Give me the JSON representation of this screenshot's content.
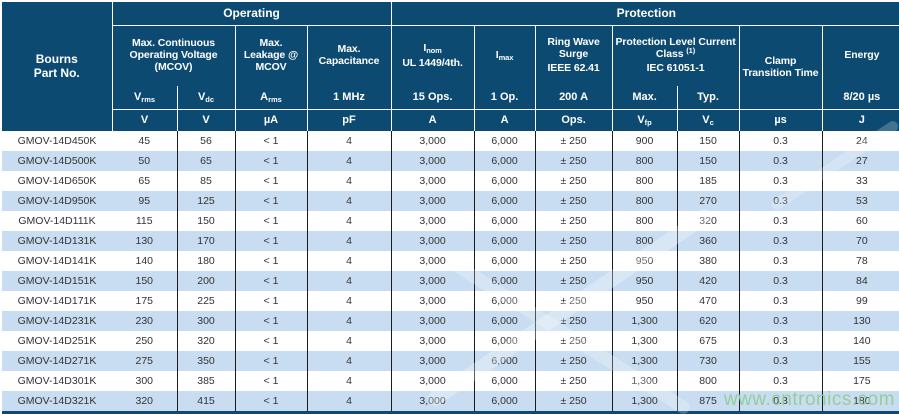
{
  "header": {
    "part": {
      "line1": "Bourns",
      "line2": "Part No."
    },
    "groups": {
      "operating": "Operating",
      "protection": "Protection"
    },
    "mcov": {
      "title": "Max. Continuous Operating Voltage (MCOV)",
      "vrms_base": "V",
      "vrms_sub": "rms",
      "vdc_base": "V",
      "vdc_sub": "dc",
      "unit_rms": "V",
      "unit_dc": "V"
    },
    "leakage": {
      "title": "Max. Leakage @ MCOV",
      "sub_base": "A",
      "sub_sub": "rms",
      "unit": "µA"
    },
    "capacitance": {
      "title": "Max. Capacitance",
      "cond": "1 MHz",
      "unit": "pF"
    },
    "inom": {
      "base": "I",
      "sub": "nom",
      "std": "UL 1449/4th.",
      "ops": "15 Ops.",
      "unit": "A"
    },
    "imax": {
      "base": "I",
      "sub": "max",
      "ops": "1 Op.",
      "unit": "A"
    },
    "ringwave": {
      "title": "Ring Wave Surge",
      "std": "IEEE 62.41",
      "ops": "200 A",
      "unit": "Ops."
    },
    "protlevel": {
      "title": "Protection Level Current Class",
      "note": "(1)",
      "std": "IEC 61051-1",
      "max_label": "Max.",
      "typ_label": "Typ.",
      "unit_max_base": "V",
      "unit_max_sub": "fp",
      "unit_typ_base": "V",
      "unit_typ_sub": "c"
    },
    "clamp": {
      "title": "Clamp Transition Time",
      "unit": "µs"
    },
    "energy": {
      "title": "Energy",
      "cond": "8/20 µs",
      "unit": "J"
    }
  },
  "rows": [
    [
      "GMOV-14D450K",
      "45",
      "56",
      "< 1",
      "4",
      "3,000",
      "6,000",
      "± 250",
      "900",
      "150",
      "0.3",
      "24"
    ],
    [
      "GMOV-14D500K",
      "50",
      "65",
      "< 1",
      "4",
      "3,000",
      "6,000",
      "± 250",
      "800",
      "150",
      "0.3",
      "27"
    ],
    [
      "GMOV-14D650K",
      "65",
      "85",
      "< 1",
      "4",
      "3,000",
      "6,000",
      "± 250",
      "800",
      "185",
      "0.3",
      "33"
    ],
    [
      "GMOV-14D950K",
      "95",
      "125",
      "< 1",
      "4",
      "3,000",
      "6,000",
      "± 250",
      "800",
      "270",
      "0.3",
      "53"
    ],
    [
      "GMOV-14D111K",
      "115",
      "150",
      "< 1",
      "4",
      "3,000",
      "6,000",
      "± 250",
      "800",
      "320",
      "0.3",
      "60"
    ],
    [
      "GMOV-14D131K",
      "130",
      "170",
      "< 1",
      "4",
      "3,000",
      "6,000",
      "± 250",
      "800",
      "360",
      "0.3",
      "70"
    ],
    [
      "GMOV-14D141K",
      "140",
      "180",
      "< 1",
      "4",
      "3,000",
      "6,000",
      "± 250",
      "950",
      "380",
      "0.3",
      "78"
    ],
    [
      "GMOV-14D151K",
      "150",
      "200",
      "< 1",
      "4",
      "3,000",
      "6,000",
      "± 250",
      "950",
      "420",
      "0.3",
      "84"
    ],
    [
      "GMOV-14D171K",
      "175",
      "225",
      "< 1",
      "4",
      "3,000",
      "6,000",
      "± 250",
      "950",
      "470",
      "0.3",
      "99"
    ],
    [
      "GMOV-14D231K",
      "230",
      "300",
      "< 1",
      "4",
      "3,000",
      "6,000",
      "± 250",
      "1,300",
      "620",
      "0.3",
      "130"
    ],
    [
      "GMOV-14D251K",
      "250",
      "320",
      "< 1",
      "4",
      "3,000",
      "6,000",
      "± 250",
      "1,300",
      "675",
      "0.3",
      "140"
    ],
    [
      "GMOV-14D271K",
      "275",
      "350",
      "< 1",
      "4",
      "3,000",
      "6,000",
      "± 250",
      "1,300",
      "730",
      "0.3",
      "155"
    ],
    [
      "GMOV-14D301K",
      "300",
      "385",
      "< 1",
      "4",
      "3,000",
      "6,000",
      "± 250",
      "1,300",
      "800",
      "0.3",
      "175"
    ],
    [
      "GMOV-14D321K",
      "320",
      "415",
      "< 1",
      "4",
      "3,000",
      "6,000",
      "± 250",
      "1,300",
      "875",
      "0.3",
      "180"
    ]
  ],
  "watermark": "www.cntronics.com",
  "colors": {
    "header_blue": "#0d4a72",
    "row_alt_blue": "#c8ddf1",
    "grid_line": "#1c1c1c",
    "watermark_green": "#8fce8f"
  }
}
